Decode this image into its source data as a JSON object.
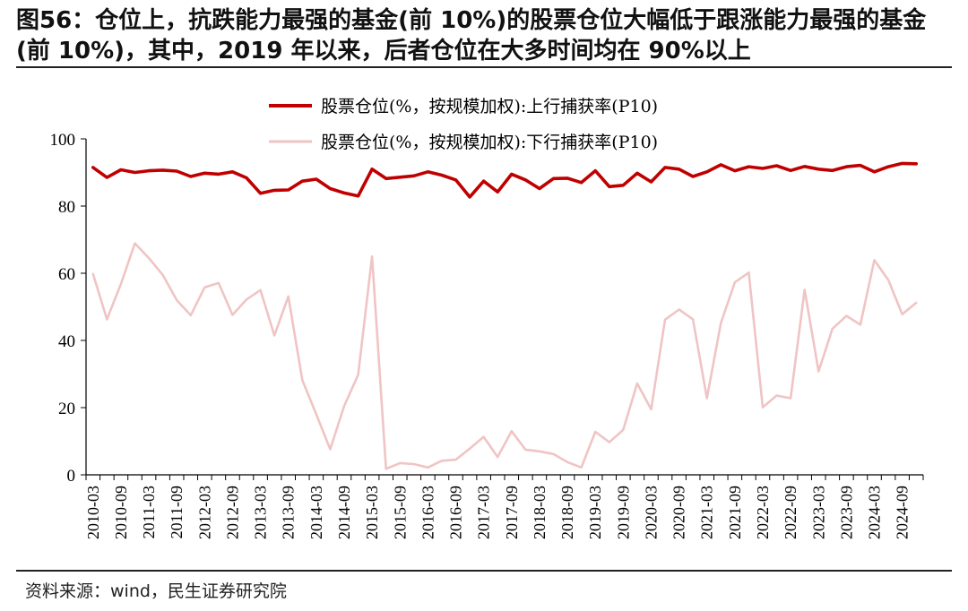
{
  "title": "图56：仓位上，抗跌能力最强的基金(前 10%)的股票仓位大幅低于跟涨能力最强的基金(前 10%)，其中，2019 年以来，后者仓位在大多时间均在 90%以上",
  "source": "资料来源：wind，民生证券研究院",
  "colors": {
    "upside": "#c00000",
    "downside": "#f0c4c4"
  },
  "chart_data": {
    "type": "line",
    "x": [
      "2010-03",
      "2010-06",
      "2010-09",
      "2010-12",
      "2011-03",
      "2011-06",
      "2011-09",
      "2011-12",
      "2012-03",
      "2012-06",
      "2012-09",
      "2012-12",
      "2013-03",
      "2013-06",
      "2013-09",
      "2013-12",
      "2014-03",
      "2014-06",
      "2014-09",
      "2014-12",
      "2015-03",
      "2015-06",
      "2015-09",
      "2015-12",
      "2016-03",
      "2016-06",
      "2016-09",
      "2016-12",
      "2017-03",
      "2017-06",
      "2017-09",
      "2017-12",
      "2018-03",
      "2018-06",
      "2018-09",
      "2018-12",
      "2019-03",
      "2019-06",
      "2019-09",
      "2019-12",
      "2020-03",
      "2020-06",
      "2020-09",
      "2020-12",
      "2021-03",
      "2021-06",
      "2021-09",
      "2021-12",
      "2022-03",
      "2022-06",
      "2022-09",
      "2022-12",
      "2023-03",
      "2023-06",
      "2023-09",
      "2023-12",
      "2024-03",
      "2024-06",
      "2024-09",
      "2024-12"
    ],
    "xtick_labels": [
      "2010-03",
      "2010-09",
      "2011-03",
      "2011-09",
      "2012-03",
      "2012-09",
      "2013-03",
      "2013-09",
      "2014-03",
      "2014-09",
      "2015-03",
      "2015-09",
      "2016-03",
      "2016-09",
      "2017-03",
      "2017-09",
      "2018-03",
      "2018-09",
      "2019-03",
      "2019-09",
      "2020-03",
      "2020-09",
      "2021-03",
      "2021-09",
      "2022-03",
      "2022-09",
      "2023-03",
      "2023-09",
      "2024-03",
      "2024-09"
    ],
    "ylim": [
      0,
      100
    ],
    "yticks": [
      0,
      20,
      40,
      60,
      80,
      100
    ],
    "legend_position": "top-center",
    "series": [
      {
        "name": "股票仓位(%，按规模加权):上行捕获率(P10)",
        "values": [
          91.5,
          88.5,
          90.8,
          90.0,
          90.5,
          90.7,
          90.4,
          88.8,
          89.8,
          89.5,
          90.2,
          88.4,
          83.8,
          84.7,
          84.8,
          87.4,
          88.0,
          85.2,
          83.9,
          83.0,
          91.0,
          88.2,
          88.6,
          89.0,
          90.2,
          89.2,
          87.8,
          82.7,
          87.4,
          84.2,
          89.5,
          87.8,
          85.2,
          88.2,
          88.3,
          87.0,
          90.5,
          85.8,
          86.2,
          89.8,
          87.2,
          91.5,
          91.0,
          88.8,
          90.2,
          92.3,
          90.5,
          91.7,
          91.2,
          92.0,
          90.6,
          91.8,
          91.0,
          90.6,
          91.7,
          92.1,
          90.2,
          91.7,
          92.7,
          92.6
        ]
      },
      {
        "name": "股票仓位(%，按规模加权):下行捕获率(P10)",
        "values": [
          59.8,
          46.3,
          56.8,
          68.9,
          64.5,
          59.5,
          52.0,
          47.5,
          55.8,
          57.1,
          47.6,
          52.2,
          55.0,
          41.5,
          53.1,
          28.2,
          18.0,
          7.6,
          20.5,
          29.8,
          65.0,
          1.8,
          3.5,
          3.2,
          2.2,
          4.2,
          4.5,
          7.8,
          11.3,
          5.3,
          13.0,
          7.5,
          7.0,
          6.2,
          3.8,
          2.2,
          12.8,
          9.7,
          13.4,
          27.2,
          19.5,
          46.2,
          49.2,
          46.3,
          22.8,
          45.2,
          57.3,
          60.2,
          20.1,
          23.6,
          22.8,
          55.1,
          30.8,
          43.5,
          47.3,
          44.7,
          63.9,
          58.0,
          47.8,
          51.2
        ]
      }
    ]
  }
}
